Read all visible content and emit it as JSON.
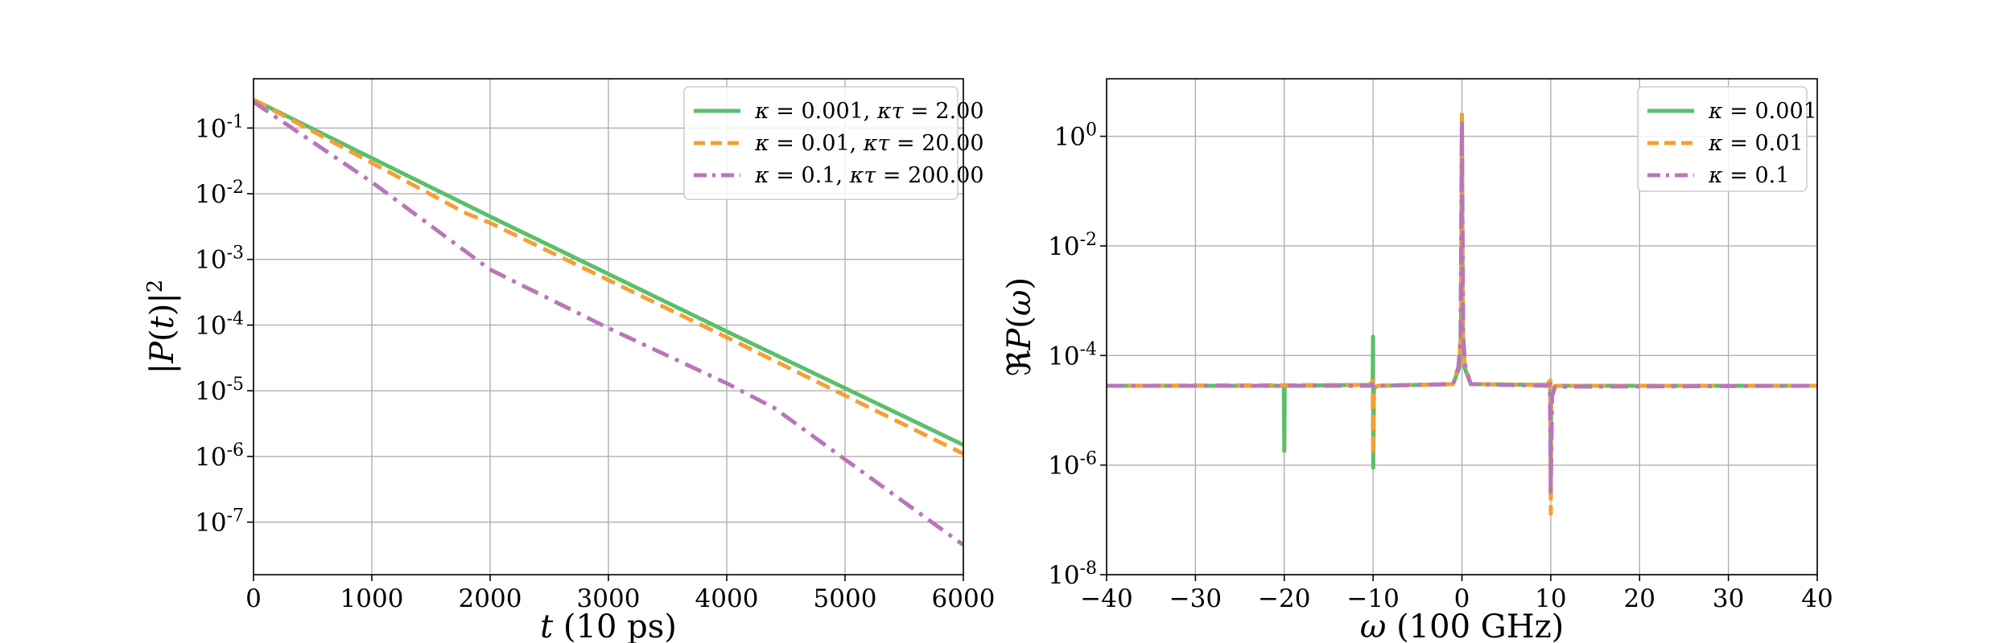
{
  "colors": {
    "green": "#5bbf6a",
    "orange": "#f4a035",
    "purple": "#b877b9"
  },
  "chart_data": [
    {
      "type": "line",
      "panel": "left",
      "title": "",
      "xlabel": "t (10 ps)",
      "ylabel": "|P(t)|²",
      "xlim": [
        0,
        6000
      ],
      "ylim_log10": [
        -7.8,
        -0.25
      ],
      "y_scale": "log",
      "grid": true,
      "legend_position": "top-right",
      "x_ticks": [
        {
          "value": 0,
          "label": "0"
        },
        {
          "value": 1000,
          "label": "1000"
        },
        {
          "value": 2000,
          "label": "2000"
        },
        {
          "value": 3000,
          "label": "3000"
        },
        {
          "value": 4000,
          "label": "4000"
        },
        {
          "value": 5000,
          "label": "5000"
        },
        {
          "value": 6000,
          "label": "6000"
        }
      ],
      "y_ticks": [
        {
          "exp": -1,
          "label": "10-1"
        },
        {
          "exp": -2,
          "label": "10-2"
        },
        {
          "exp": -3,
          "label": "10-3"
        },
        {
          "exp": -4,
          "label": "10-4"
        },
        {
          "exp": -5,
          "label": "10-5"
        },
        {
          "exp": -6,
          "label": "10-6"
        },
        {
          "exp": -7,
          "label": "10-7"
        }
      ],
      "series": [
        {
          "name": "κ = 0.001, κτ = 2.00",
          "color": "#5bbf6a",
          "style": "solid",
          "points": [
            [
              0,
              0.27
            ],
            [
              2000,
              0.0045
            ],
            [
              4000,
              8e-05
            ],
            [
              6000,
              1.5e-06
            ]
          ]
        },
        {
          "name": "κ = 0.01, κτ = 20.00",
          "color": "#f4a035",
          "style": "dashed",
          "points": [
            [
              0,
              0.27
            ],
            [
              1800,
              0.005
            ],
            [
              2000,
              0.0036
            ],
            [
              4000,
              6.5e-05
            ],
            [
              6000,
              1.1e-06
            ]
          ]
        },
        {
          "name": "κ = 0.1, κτ = 200.00",
          "color": "#b877b9",
          "style": "dashdot",
          "points": [
            [
              0,
              0.25
            ],
            [
              1000,
              0.015
            ],
            [
              2000,
              0.0007
            ],
            [
              3000,
              9e-05
            ],
            [
              4000,
              1.3e-05
            ],
            [
              4400,
              5.5e-06
            ],
            [
              5000,
              9e-07
            ],
            [
              6000,
              4.5e-08
            ]
          ]
        }
      ]
    },
    {
      "type": "line",
      "panel": "right",
      "title": "",
      "xlabel": "ω (100 GHz)",
      "ylabel": "ℜP(ω)",
      "xlim": [
        -40,
        40
      ],
      "ylim_log10": [
        -8,
        1.05
      ],
      "y_scale": "log",
      "grid": true,
      "legend_position": "top-right",
      "x_ticks": [
        {
          "value": -40,
          "label": "−40"
        },
        {
          "value": -30,
          "label": "−30"
        },
        {
          "value": -20,
          "label": "−20"
        },
        {
          "value": -10,
          "label": "−10"
        },
        {
          "value": 0,
          "label": "0"
        },
        {
          "value": 10,
          "label": "10"
        },
        {
          "value": 20,
          "label": "20"
        },
        {
          "value": 30,
          "label": "30"
        },
        {
          "value": 40,
          "label": "40"
        }
      ],
      "y_ticks": [
        {
          "exp": 0,
          "label": "100"
        },
        {
          "exp": -2,
          "label": "10-2"
        },
        {
          "exp": -4,
          "label": "10-4"
        },
        {
          "exp": -6,
          "label": "10-6"
        },
        {
          "exp": -8,
          "label": "10-8"
        }
      ],
      "series": [
        {
          "name": "κ = 0.001",
          "color": "#5bbf6a",
          "style": "solid",
          "points": [
            [
              -40,
              2.8e-05
            ],
            [
              -20.05,
              2.8e-05
            ],
            [
              -20,
              1.8e-06
            ],
            [
              -19.95,
              2.8e-05
            ],
            [
              -10.4,
              2.9e-05
            ],
            [
              -10.05,
              3.3e-05
            ],
            [
              -10,
              0.00022
            ],
            [
              -9.98,
              9e-07
            ],
            [
              -9.9,
              2.5e-05
            ],
            [
              -9.5,
              2.8e-05
            ],
            [
              -1,
              3e-05
            ],
            [
              -0.3,
              6e-05
            ],
            [
              -0.1,
              0.0003
            ],
            [
              0,
              2.5
            ],
            [
              0.1,
              0.0003
            ],
            [
              0.3,
              6e-05
            ],
            [
              1,
              3e-05
            ],
            [
              9.5,
              2.9e-05
            ],
            [
              9.95,
              3.3e-05
            ],
            [
              10,
              3e-07
            ],
            [
              10.05,
              2e-05
            ],
            [
              10.5,
              2.8e-05
            ],
            [
              40,
              2.8e-05
            ]
          ]
        },
        {
          "name": "κ = 0.01",
          "color": "#f4a035",
          "style": "dashed",
          "points": [
            [
              -40,
              2.8e-05
            ],
            [
              -10.4,
              2.9e-05
            ],
            [
              -10.05,
              3.5e-05
            ],
            [
              -10,
              1.5e-06
            ],
            [
              -9.9,
              2.5e-05
            ],
            [
              -9.5,
              2.8e-05
            ],
            [
              -1,
              3e-05
            ],
            [
              -0.3,
              7e-05
            ],
            [
              -0.1,
              0.0003
            ],
            [
              0,
              2.5
            ],
            [
              0.1,
              0.0003
            ],
            [
              0.3,
              7e-05
            ],
            [
              1,
              3e-05
            ],
            [
              9.5,
              2.9e-05
            ],
            [
              9.95,
              3.5e-05
            ],
            [
              10,
              1.3e-07
            ],
            [
              10.05,
              2e-05
            ],
            [
              10.5,
              2.8e-05
            ],
            [
              40,
              2.8e-05
            ]
          ]
        },
        {
          "name": "κ = 0.1",
          "color": "#b877b9",
          "style": "dashdot",
          "points": [
            [
              -40,
              2.8e-05
            ],
            [
              -10.4,
              2.8e-05
            ],
            [
              -10.1,
              3e-05
            ],
            [
              -10,
              2.6e-05
            ],
            [
              -9.8,
              2.8e-05
            ],
            [
              -1,
              3e-05
            ],
            [
              -0.4,
              6e-05
            ],
            [
              -0.15,
              0.0002
            ],
            [
              0,
              1.9
            ],
            [
              0.15,
              0.0002
            ],
            [
              0.4,
              6e-05
            ],
            [
              1,
              3e-05
            ],
            [
              9.6,
              2.8e-05
            ],
            [
              9.9,
              3e-05
            ],
            [
              10,
              3e-07
            ],
            [
              10.15,
              1.8e-05
            ],
            [
              10.5,
              2.7e-05
            ],
            [
              40,
              2.8e-05
            ]
          ]
        }
      ]
    }
  ],
  "legends": {
    "left": [
      {
        "pre": "κ",
        "eq": " = 0.001, ",
        "k2": "κτ",
        "eq2": " = 2.00"
      },
      {
        "pre": "κ",
        "eq": " = 0.01, ",
        "k2": "κτ",
        "eq2": " = 20.00"
      },
      {
        "pre": "κ",
        "eq": " = 0.1, ",
        "k2": "κτ",
        "eq2": " = 200.00"
      }
    ],
    "right": [
      {
        "pre": "κ",
        "eq": " = 0.001"
      },
      {
        "pre": "κ",
        "eq": " = 0.01"
      },
      {
        "pre": "κ",
        "eq": " = 0.1"
      }
    ]
  }
}
